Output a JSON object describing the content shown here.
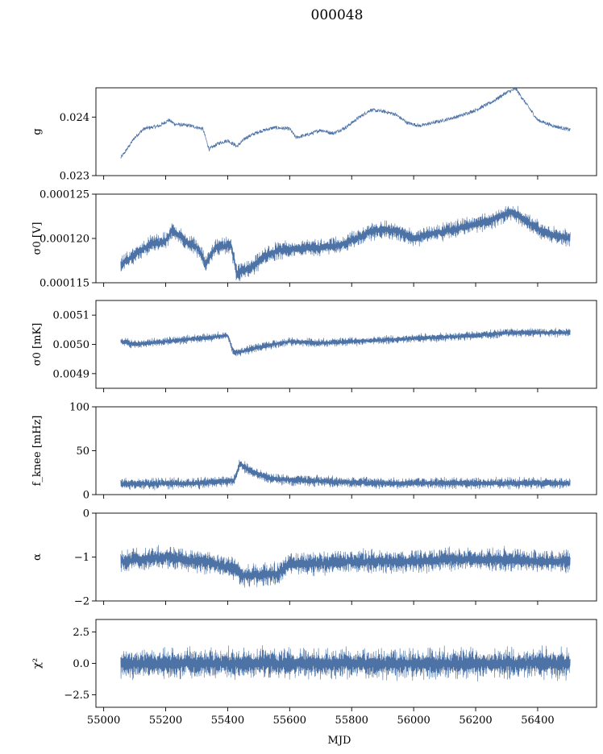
{
  "title": "000048",
  "xlabel": "MJD",
  "chart_data": {
    "type": "line",
    "color": "#4c72a6",
    "shared_x": {
      "label": "MJD",
      "ticks": [
        55000,
        55200,
        55400,
        55600,
        55800,
        56000,
        56200,
        56400
      ],
      "tick_labels": [
        "55000",
        "55200",
        "55400",
        "55600",
        "55800",
        "56000",
        "56200",
        "56400"
      ],
      "xlim": [
        54975,
        56590
      ],
      "data_range": [
        55055,
        56505
      ]
    },
    "panels": [
      {
        "ylabel": "g",
        "ylim": [
          0.023,
          0.0245
        ],
        "yticks": [
          0.023,
          0.024
        ],
        "ytick_labels": [
          "0.023",
          "0.024"
        ],
        "noise": 3e-05,
        "trend": [
          [
            55055,
            0.0233
          ],
          [
            55075,
            0.02345
          ],
          [
            55100,
            0.02365
          ],
          [
            55130,
            0.0238
          ],
          [
            55180,
            0.02385
          ],
          [
            55210,
            0.02395
          ],
          [
            55230,
            0.02388
          ],
          [
            55280,
            0.02385
          ],
          [
            55320,
            0.0238
          ],
          [
            55340,
            0.02345
          ],
          [
            55370,
            0.02355
          ],
          [
            55400,
            0.0236
          ],
          [
            55430,
            0.0235
          ],
          [
            55460,
            0.02365
          ],
          [
            55500,
            0.02375
          ],
          [
            55550,
            0.02382
          ],
          [
            55600,
            0.0238
          ],
          [
            55620,
            0.02365
          ],
          [
            55660,
            0.0237
          ],
          [
            55700,
            0.02378
          ],
          [
            55740,
            0.02372
          ],
          [
            55780,
            0.02382
          ],
          [
            55820,
            0.02398
          ],
          [
            55860,
            0.02412
          ],
          [
            55900,
            0.0241
          ],
          [
            55940,
            0.02405
          ],
          [
            55980,
            0.0239
          ],
          [
            56020,
            0.02385
          ],
          [
            56060,
            0.0239
          ],
          [
            56100,
            0.02395
          ],
          [
            56150,
            0.02402
          ],
          [
            56200,
            0.02412
          ],
          [
            56250,
            0.02425
          ],
          [
            56300,
            0.02442
          ],
          [
            56330,
            0.02448
          ],
          [
            56360,
            0.02425
          ],
          [
            56400,
            0.02395
          ],
          [
            56450,
            0.02385
          ],
          [
            56505,
            0.02378
          ]
        ]
      },
      {
        "ylabel": "σ0 [V]",
        "ylim": [
          0.000115,
          0.000125
        ],
        "yticks": [
          0.000115,
          0.00012,
          0.000125
        ],
        "ytick_labels": [
          "0.000115",
          "0.000120",
          "0.000125"
        ],
        "noise": 6e-07,
        "trend": [
          [
            55055,
            0.000117
          ],
          [
            55100,
            0.0001182
          ],
          [
            55150,
            0.0001193
          ],
          [
            55200,
            0.0001197
          ],
          [
            55220,
            0.000121
          ],
          [
            55260,
            0.0001198
          ],
          [
            55300,
            0.000119
          ],
          [
            55330,
            0.0001172
          ],
          [
            55360,
            0.000119
          ],
          [
            55410,
            0.0001192
          ],
          [
            55430,
            0.000116
          ],
          [
            55480,
            0.0001168
          ],
          [
            55520,
            0.000118
          ],
          [
            55560,
            0.0001186
          ],
          [
            55620,
            0.0001188
          ],
          [
            55700,
            0.000119
          ],
          [
            55760,
            0.0001192
          ],
          [
            55820,
            0.00012
          ],
          [
            55860,
            0.0001208
          ],
          [
            55900,
            0.000121
          ],
          [
            55950,
            0.0001208
          ],
          [
            56000,
            0.00012
          ],
          [
            56050,
            0.0001205
          ],
          [
            56100,
            0.0001208
          ],
          [
            56200,
            0.0001216
          ],
          [
            56260,
            0.0001222
          ],
          [
            56320,
            0.000123
          ],
          [
            56370,
            0.0001218
          ],
          [
            56420,
            0.0001206
          ],
          [
            56505,
            0.00012
          ]
        ]
      },
      {
        "ylabel": "σ0 [mK]",
        "ylim": [
          0.00485,
          0.00515
        ],
        "yticks": [
          0.0049,
          0.005,
          0.0051
        ],
        "ytick_labels": [
          "0.0049",
          "0.0050",
          "0.0051"
        ],
        "noise": 9e-06,
        "trend": [
          [
            55055,
            0.00501
          ],
          [
            55100,
            0.005
          ],
          [
            55200,
            0.00501
          ],
          [
            55300,
            0.00502
          ],
          [
            55400,
            0.00503
          ],
          [
            55420,
            0.00497
          ],
          [
            55500,
            0.00499
          ],
          [
            55600,
            0.00501
          ],
          [
            55700,
            0.005005
          ],
          [
            55800,
            0.00501
          ],
          [
            55900,
            0.005015
          ],
          [
            56000,
            0.00502
          ],
          [
            56100,
            0.005025
          ],
          [
            56200,
            0.00503
          ],
          [
            56300,
            0.00504
          ],
          [
            56400,
            0.00504
          ],
          [
            56505,
            0.00504
          ]
        ]
      },
      {
        "ylabel": "f_knee [mHz]",
        "ylim": [
          0,
          100
        ],
        "yticks": [
          0,
          50,
          100
        ],
        "ytick_labels": [
          "0",
          "50",
          "100"
        ],
        "noise": 4,
        "trend": [
          [
            55055,
            12
          ],
          [
            55300,
            13
          ],
          [
            55420,
            16
          ],
          [
            55440,
            35
          ],
          [
            55480,
            26
          ],
          [
            55540,
            18
          ],
          [
            55600,
            17
          ],
          [
            55700,
            15
          ],
          [
            55800,
            14
          ],
          [
            55900,
            13
          ],
          [
            56100,
            13
          ],
          [
            56300,
            13
          ],
          [
            56505,
            13
          ]
        ]
      },
      {
        "ylabel": "α",
        "ylim": [
          -2,
          0
        ],
        "yticks": [
          -2,
          -1,
          0
        ],
        "ytick_labels": [
          "−2",
          "−1",
          "0"
        ],
        "noise": 0.16,
        "trend": [
          [
            55055,
            -1.1
          ],
          [
            55200,
            -1.0
          ],
          [
            55320,
            -1.1
          ],
          [
            55420,
            -1.25
          ],
          [
            55450,
            -1.42
          ],
          [
            55500,
            -1.42
          ],
          [
            55560,
            -1.38
          ],
          [
            55600,
            -1.15
          ],
          [
            55700,
            -1.15
          ],
          [
            55800,
            -1.1
          ],
          [
            55900,
            -1.1
          ],
          [
            56000,
            -1.1
          ],
          [
            56100,
            -1.05
          ],
          [
            56200,
            -1.05
          ],
          [
            56300,
            -1.05
          ],
          [
            56400,
            -1.1
          ],
          [
            56505,
            -1.1
          ]
        ]
      },
      {
        "ylabel": "χ²",
        "ylim": [
          -3.5,
          3.5
        ],
        "yticks": [
          -2.5,
          0,
          2.5
        ],
        "ytick_labels": [
          "−2.5",
          "0.0",
          "2.5"
        ],
        "noise": 0.75,
        "trend": [
          [
            55055,
            0
          ],
          [
            56505,
            0
          ]
        ]
      }
    ]
  }
}
